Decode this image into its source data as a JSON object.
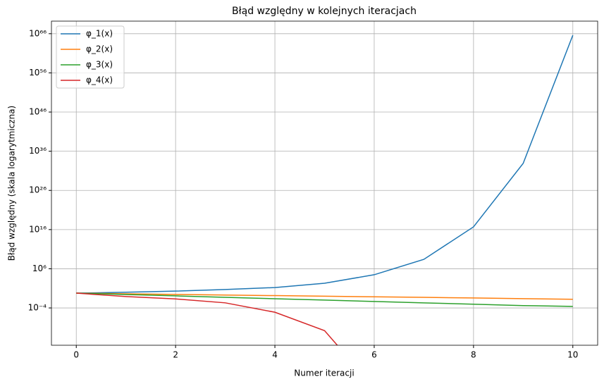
{
  "chart_data": {
    "type": "line",
    "title": "Błąd względny w kolejnych iteracjach",
    "x_label": "Numer iteracji",
    "y_label": "Błąd względny (skala logarytmiczna)",
    "x": [
      0,
      1,
      2,
      3,
      4,
      5,
      6,
      7,
      8,
      9,
      10
    ],
    "series": [
      {
        "name": "φ_1(x)",
        "color": "#1f77b4",
        "values": [
          0.6,
          1,
          2,
          5,
          16,
          200,
          30000,
          250000000,
          5e+16,
          8e+32,
          4e+65
        ]
      },
      {
        "name": "φ_2(x)",
        "color": "#ff7f0e",
        "values": [
          0.6,
          0.4,
          0.28,
          0.2,
          0.14,
          0.1,
          0.07,
          0.05,
          0.035,
          0.024,
          0.016
        ]
      },
      {
        "name": "φ_3(x)",
        "color": "#2ca02c",
        "values": [
          0.6,
          0.27,
          0.12,
          0.05,
          0.022,
          0.01,
          0.0045,
          0.002,
          0.0009,
          0.0004,
          0.00025
        ]
      },
      {
        "name": "φ_4(x)",
        "color": "#d62728",
        "values": [
          0.6,
          0.08,
          0.02,
          0.002,
          8e-06,
          1.6e-10,
          0,
          null,
          null,
          null,
          null
        ]
      }
    ],
    "xlim": [
      -0.5,
      10.5
    ],
    "xticks": [
      0,
      2,
      4,
      6,
      8,
      10
    ],
    "ylim": [
      3e-14,
      1.6e+69
    ],
    "log_y": true,
    "yticks": [
      {
        "value": 0.0001,
        "label": "10⁻⁴"
      },
      {
        "value": 1000000.0,
        "label": "10⁶"
      },
      {
        "value": 1e+16,
        "label": "10¹⁶"
      },
      {
        "value": 1e+26,
        "label": "10²⁶"
      },
      {
        "value": 1e+36,
        "label": "10³⁶"
      },
      {
        "value": 1e+46,
        "label": "10⁴⁶"
      },
      {
        "value": 1e+56,
        "label": "10⁵⁶"
      },
      {
        "value": 1e+66,
        "label": "10⁶⁶"
      }
    ],
    "grid": true,
    "legend": "upper left"
  }
}
